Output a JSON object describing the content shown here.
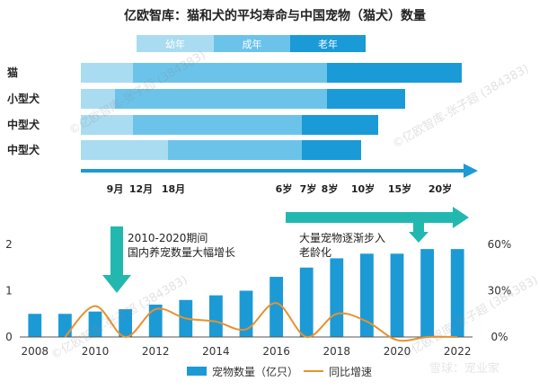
{
  "title": "亿欧智库：猫和犬的平均寿命与中国宠物（猫犬）数量",
  "lifespan_chart": {
    "stages": [
      {
        "label": "幼年",
        "color": "#a9dcf1"
      },
      {
        "label": "成年",
        "color": "#6cc3ea"
      },
      {
        "label": "老年",
        "color": "#1a9ad6"
      }
    ],
    "rows": [
      {
        "label": "猫",
        "segments": [
          12,
          20,
          6
        ]
      },
      {
        "label": "小型犬",
        "segments": [
          7,
          20,
          3
        ]
      },
      {
        "label": "中型犬",
        "segments": [
          12,
          20,
          2
        ]
      },
      {
        "label": "中型犬",
        "segments": [
          10,
          20,
          1
        ]
      }
    ],
    "timeline_ticks": [
      "9月",
      "12月",
      "18月",
      "6岁",
      "7岁",
      "8岁",
      "10岁",
      "15岁",
      "20岁"
    ]
  },
  "chart_data": {
    "type": "bar",
    "categories": [
      "2008",
      "2009",
      "2010",
      "2011",
      "2012",
      "2013",
      "2014",
      "2015",
      "2016",
      "2017",
      "2018",
      "2019",
      "2020",
      "2021",
      "2022"
    ],
    "x_tick_labels": [
      "2008",
      "2010",
      "2012",
      "2014",
      "2016",
      "2018",
      "2020",
      "2022"
    ],
    "ylim": [
      0,
      2
    ],
    "y_ticks": [
      "0",
      "1",
      "2"
    ],
    "y2lim": [
      0,
      60
    ],
    "y2_ticks": [
      "0%",
      "30%",
      "60%"
    ],
    "series": [
      {
        "name": "宠物数量（亿只）",
        "type": "bar",
        "axis": "left",
        "values": [
          0.5,
          0.5,
          0.55,
          0.6,
          0.7,
          0.8,
          0.9,
          1.0,
          1.3,
          1.5,
          1.7,
          1.8,
          1.8,
          1.9,
          1.9
        ]
      },
      {
        "name": "同比增速",
        "type": "line",
        "axis": "right",
        "values": [
          null,
          0,
          20,
          0,
          18,
          12,
          10,
          5,
          22,
          0,
          15,
          10,
          -2,
          0,
          0
        ]
      }
    ],
    "legend_position": "bottom",
    "annotations": [
      "2010-2020期间国内养宠数量大幅增长",
      "大量宠物逐渐步入老龄化"
    ]
  },
  "colors": {
    "bar": "#1c9ad6",
    "line": "#e8912d",
    "arrow": "#22b8b0",
    "axis": "#333333"
  },
  "watermarks": [
    "©亿欧智库-张子超 (384383)",
    "雪球：宠业家"
  ]
}
